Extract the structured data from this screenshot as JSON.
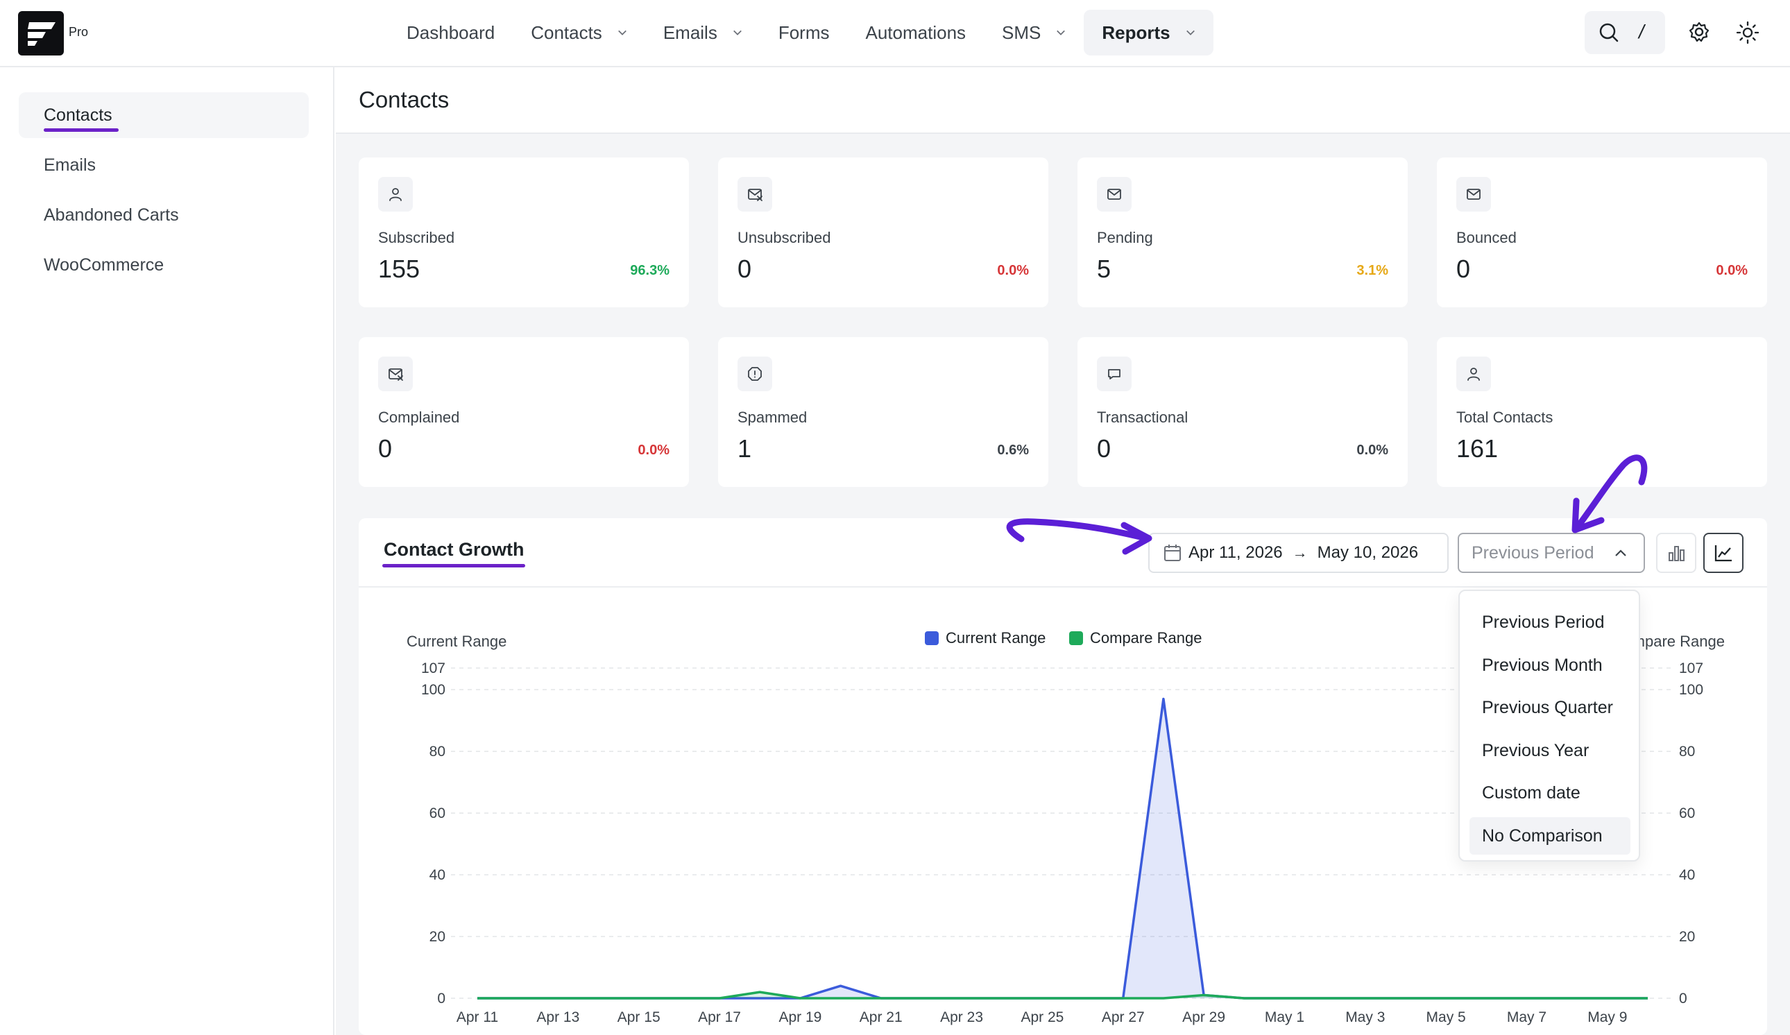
{
  "brand": {
    "badge": "Pro"
  },
  "nav": {
    "items": [
      {
        "label": "Dashboard",
        "has_menu": false,
        "active": false
      },
      {
        "label": "Contacts",
        "has_menu": true,
        "active": false
      },
      {
        "label": "Emails",
        "has_menu": true,
        "active": false
      },
      {
        "label": "Forms",
        "has_menu": false,
        "active": false
      },
      {
        "label": "Automations",
        "has_menu": false,
        "active": false
      },
      {
        "label": "SMS",
        "has_menu": true,
        "active": false
      },
      {
        "label": "Reports",
        "has_menu": true,
        "active": true
      }
    ],
    "search_shortcut": "/"
  },
  "sidebar": {
    "items": [
      {
        "label": "Contacts",
        "active": true
      },
      {
        "label": "Emails",
        "active": false
      },
      {
        "label": "Abandoned Carts",
        "active": false
      },
      {
        "label": "WooCommerce",
        "active": false
      }
    ]
  },
  "page": {
    "title": "Contacts"
  },
  "stats": [
    {
      "icon": "user-icon",
      "label": "Subscribed",
      "value": "155",
      "percent": "96.3%",
      "color": "#1eaa5a"
    },
    {
      "icon": "mail-x-icon",
      "label": "Unsubscribed",
      "value": "0",
      "percent": "0.0%",
      "color": "#d63638"
    },
    {
      "icon": "mail-icon",
      "label": "Pending",
      "value": "5",
      "percent": "3.1%",
      "color": "#e6a817"
    },
    {
      "icon": "mail-icon",
      "label": "Bounced",
      "value": "0",
      "percent": "0.0%",
      "color": "#d63638"
    },
    {
      "icon": "mail-x-icon",
      "label": "Complained",
      "value": "0",
      "percent": "0.0%",
      "color": "#d63638"
    },
    {
      "icon": "alert-octagon-icon",
      "label": "Spammed",
      "value": "1",
      "percent": "0.6%",
      "color": "#3c434a"
    },
    {
      "icon": "message-icon",
      "label": "Transactional",
      "value": "0",
      "percent": "0.0%",
      "color": "#3c434a"
    },
    {
      "icon": "user-icon",
      "label": "Total Contacts",
      "value": "161",
      "percent": "",
      "color": "#3c434a"
    }
  ],
  "growth": {
    "title": "Contact Growth",
    "date_start": "Apr 11, 2026",
    "date_end": "May 10, 2026",
    "compare_placeholder": "Previous Period",
    "compare_options": [
      "Previous Period",
      "Previous Month",
      "Previous Quarter",
      "Previous Year",
      "Custom date",
      "No Comparison"
    ],
    "compare_hovered": "No Comparison"
  },
  "colors": {
    "accent": "#6b21c8",
    "current": "#3b5bdb",
    "compare": "#1eaa5a"
  },
  "chart_data": {
    "type": "area",
    "left_axis_label": "Current Range",
    "right_axis_label": "Compare Range",
    "legend": [
      {
        "name": "Current Range",
        "color": "#3b5bdb"
      },
      {
        "name": "Compare Range",
        "color": "#1eaa5a"
      }
    ],
    "y_ticks": [
      0,
      20,
      40,
      60,
      80,
      100,
      107
    ],
    "ylim": [
      0,
      107
    ],
    "x": [
      "Apr 11",
      "Apr 12",
      "Apr 13",
      "Apr 14",
      "Apr 15",
      "Apr 16",
      "Apr 17",
      "Apr 18",
      "Apr 19",
      "Apr 20",
      "Apr 21",
      "Apr 22",
      "Apr 23",
      "Apr 24",
      "Apr 25",
      "Apr 26",
      "Apr 27",
      "Apr 28",
      "Apr 29",
      "Apr 30",
      "May 1",
      "May 2",
      "May 3",
      "May 4",
      "May 5",
      "May 6",
      "May 7",
      "May 8",
      "May 9",
      "May 10"
    ],
    "x_tick_labels": [
      "Apr 11",
      "Apr 13",
      "Apr 15",
      "Apr 17",
      "Apr 19",
      "Apr 21",
      "Apr 23",
      "Apr 25",
      "Apr 27",
      "Apr 29",
      "May 1",
      "May 3",
      "May 5",
      "May 7",
      "May 9"
    ],
    "series": [
      {
        "name": "Current Range",
        "values": [
          0,
          0,
          0,
          0,
          0,
          0,
          0,
          0,
          0,
          4,
          0,
          0,
          0,
          0,
          0,
          0,
          0,
          97,
          1,
          0,
          0,
          0,
          0,
          0,
          0,
          0,
          0,
          0,
          0,
          0
        ]
      },
      {
        "name": "Compare Range",
        "values": [
          0,
          0,
          0,
          0,
          0,
          0,
          0,
          2,
          0,
          0,
          0,
          0,
          0,
          0,
          0,
          0,
          0,
          0,
          1,
          0,
          0,
          0,
          0,
          0,
          0,
          0,
          0,
          0,
          0,
          0
        ]
      }
    ],
    "grid": true
  }
}
